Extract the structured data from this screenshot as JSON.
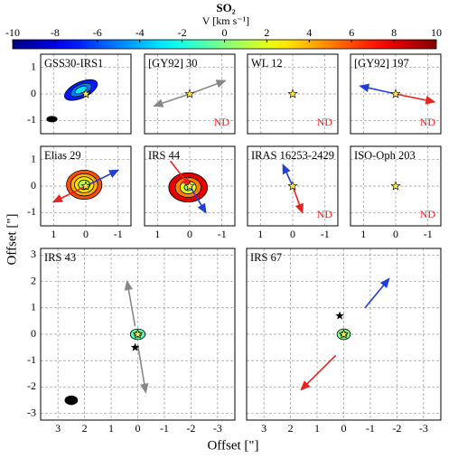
{
  "colorbar": {
    "title": "SO₂",
    "label": "V [km s⁻¹]",
    "lim": [
      -10,
      10
    ],
    "ticks": [
      -10,
      -8,
      -6,
      -4,
      -2,
      0,
      2,
      4,
      6,
      8,
      10
    ]
  },
  "x_label": "Offset [\"]",
  "y_label": "Offset [\"]",
  "small_axes": {
    "xlim": [
      1.4,
      -1.4
    ],
    "ylim": [
      -1.5,
      1.5
    ],
    "xticks": [
      1,
      0,
      -1
    ],
    "yticks": [
      -1,
      0,
      1
    ]
  },
  "large_axes": {
    "xlim": [
      3.65,
      -3.65
    ],
    "ylim": [
      -3.25,
      3.25
    ],
    "xticks": [
      3,
      2,
      1,
      0,
      -1,
      -2,
      -3
    ],
    "yticks": [
      -3,
      -2,
      -1,
      0,
      1,
      2,
      3
    ]
  },
  "panels": [
    {
      "name": "GSS30-IRS1",
      "star": [
        0,
        0
      ],
      "emission": {
        "center": [
          0.15,
          0.15
        ],
        "angle": -25,
        "layers": [
          {
            "rx": 0.55,
            "ry": 0.3,
            "v": -7
          },
          {
            "rx": 0.35,
            "ry": 0.2,
            "v": -5
          },
          {
            "rx": 0.2,
            "ry": 0.12,
            "v": -3
          }
        ]
      },
      "beam": {
        "center": [
          1.05,
          -0.95
        ],
        "rx": 0.17,
        "ry": 0.12
      }
    },
    {
      "name": "[GY92] 30",
      "star": [
        0,
        0
      ],
      "nd": "ND",
      "arrows": [
        {
          "color": "#888888",
          "from": [
            0,
            0
          ],
          "to": [
            -1.1,
            0.5
          ]
        },
        {
          "color": "#888888",
          "from": [
            0,
            0
          ],
          "to": [
            1.1,
            -0.45
          ]
        }
      ]
    },
    {
      "name": "WL 12",
      "star": [
        0,
        0
      ],
      "nd": "ND"
    },
    {
      "name": "[GY92] 197",
      "star": [
        0,
        0
      ],
      "nd": "ND",
      "arrows": [
        {
          "color": "#1f3fd6",
          "from": [
            0,
            0
          ],
          "to": [
            1.1,
            0.3
          ]
        },
        {
          "color": "#e8231f",
          "from": [
            0,
            0
          ],
          "to": [
            -1.2,
            -0.3
          ]
        }
      ]
    },
    {
      "name": "Elias 29",
      "star": [
        0,
        0
      ],
      "emission": {
        "center": [
          0.05,
          0.05
        ],
        "angle": 0,
        "layers": [
          {
            "rx": 0.55,
            "ry": 0.55,
            "v": 6
          },
          {
            "rx": 0.42,
            "ry": 0.42,
            "v": 4
          },
          {
            "rx": 0.3,
            "ry": 0.3,
            "v": 3
          },
          {
            "rx": 0.18,
            "ry": 0.18,
            "v": 1
          }
        ]
      },
      "arrows": [
        {
          "color": "#1f3fd6",
          "from": [
            0,
            0
          ],
          "to": [
            -1.0,
            0.6
          ]
        },
        {
          "color": "#e8231f",
          "from": [
            0,
            0
          ],
          "to": [
            1.0,
            -0.6
          ]
        }
      ]
    },
    {
      "name": "IRS 44",
      "star": [
        0,
        0
      ],
      "emission": {
        "center": [
          0.05,
          -0.05
        ],
        "angle": 0,
        "layers": [
          {
            "rx": 0.6,
            "ry": 0.55,
            "v": 8
          },
          {
            "rx": 0.4,
            "ry": 0.38,
            "v": 5
          },
          {
            "rx": 0.25,
            "ry": 0.24,
            "v": 2
          },
          {
            "rx": 0.12,
            "ry": 0.12,
            "v": 0
          }
        ]
      },
      "arrows": [
        {
          "color": "#e8231f",
          "from": [
            0.6,
            0.95
          ],
          "to": [
            0,
            0
          ]
        },
        {
          "color": "#1f3fd6",
          "from": [
            0,
            0
          ],
          "to": [
            -0.5,
            -1.0
          ]
        }
      ]
    },
    {
      "name": "IRAS 16253-2429",
      "star": [
        0,
        0
      ],
      "nd": "ND",
      "arrows": [
        {
          "color": "#1f3fd6",
          "from": [
            0,
            0
          ],
          "to": [
            0.3,
            0.8
          ]
        },
        {
          "color": "#e8231f",
          "from": [
            0,
            0
          ],
          "to": [
            -0.3,
            -1.0
          ]
        }
      ]
    },
    {
      "name": "ISO-Oph 203",
      "star": [
        0,
        0
      ],
      "nd": "ND"
    },
    {
      "name": "IRS 43",
      "star": [
        0,
        0
      ],
      "star2": [
        0.1,
        -0.5
      ],
      "emission": {
        "center": [
          0,
          0
        ],
        "angle": 0,
        "layers": [
          {
            "rx": 0.28,
            "ry": 0.2,
            "v": -1
          },
          {
            "rx": 0.13,
            "ry": 0.1,
            "v": 1
          }
        ]
      },
      "beam": {
        "center": [
          2.5,
          -2.5
        ],
        "rx": 0.25,
        "ry": 0.18
      },
      "arrows": [
        {
          "color": "#888888",
          "from": [
            0.1,
            0.3
          ],
          "to": [
            0.4,
            2.0
          ]
        },
        {
          "color": "#888888",
          "from": [
            0,
            -0.4
          ],
          "to": [
            -0.3,
            -2.2
          ]
        }
      ]
    },
    {
      "name": "IRS 67",
      "star": [
        0,
        0
      ],
      "star2": [
        0.15,
        0.7
      ],
      "emission": {
        "center": [
          0,
          0
        ],
        "angle": 0,
        "layers": [
          {
            "rx": 0.25,
            "ry": 0.2,
            "v": 0
          },
          {
            "rx": 0.12,
            "ry": 0.1,
            "v": -2
          }
        ]
      },
      "arrows": [
        {
          "color": "#1f3fd6",
          "from": [
            -0.8,
            1.0
          ],
          "to": [
            -1.7,
            2.1
          ]
        },
        {
          "color": "#e8231f",
          "from": [
            0.3,
            -0.8
          ],
          "to": [
            1.6,
            -2.1
          ]
        }
      ]
    }
  ]
}
